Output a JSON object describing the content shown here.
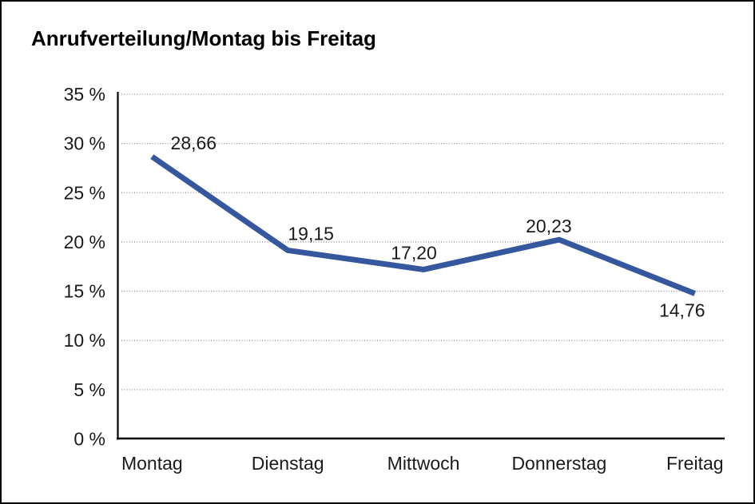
{
  "frame": {
    "background": "#ffffff",
    "border_color": "#000000"
  },
  "chart_data": {
    "type": "line",
    "title": "Anrufverteilung/Montag bis Freitag",
    "categories": [
      "Montag",
      "Dienstag",
      "Mittwoch",
      "Donnerstag",
      "Freitag"
    ],
    "values": [
      28.66,
      19.15,
      17.2,
      20.23,
      14.76
    ],
    "value_labels": [
      "28,66",
      "19,15",
      "17,20",
      "20,23",
      "14,76"
    ],
    "y_tick_values": [
      35,
      30,
      25,
      20,
      15,
      10,
      5,
      0
    ],
    "y_tick_labels": [
      "35 %",
      "30 %",
      "25 %",
      "20 %",
      "15 %",
      "10 %",
      "5 %",
      "0 %"
    ],
    "ylim": [
      0,
      35
    ],
    "xlabel": "",
    "ylabel": "",
    "grid": "horizontal-dotted",
    "legend": "none",
    "line_color": "#35579E",
    "grid_color": "#8f8f8f",
    "axis_color": "#000000",
    "text_color": "#1a1a1a"
  }
}
